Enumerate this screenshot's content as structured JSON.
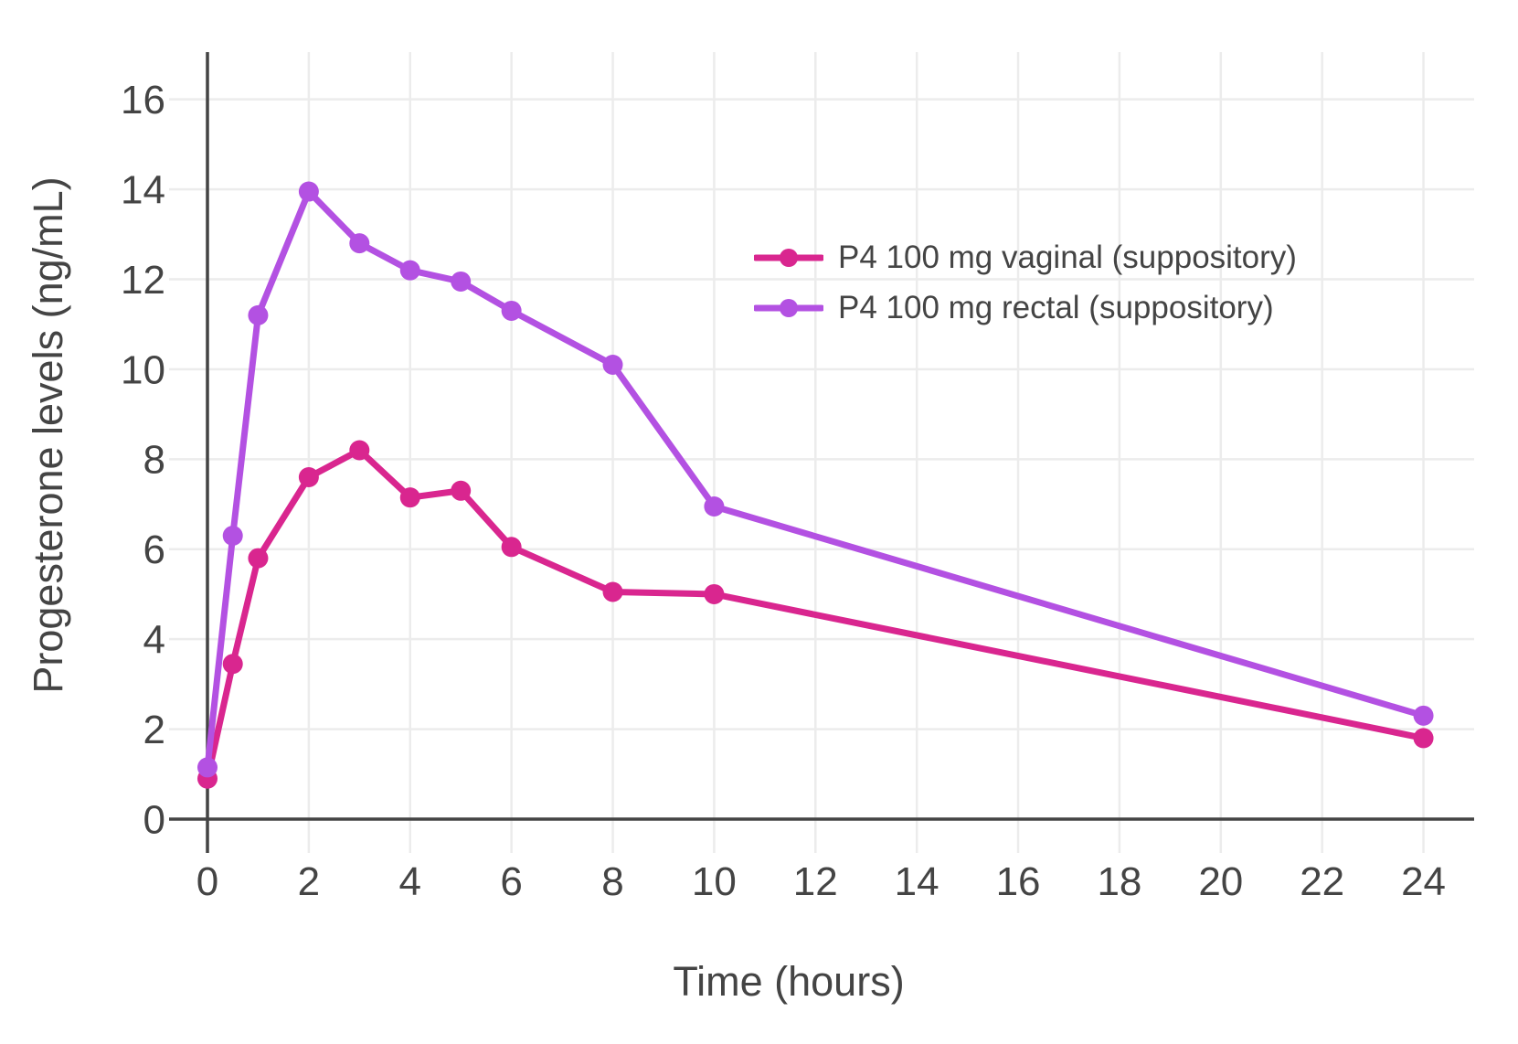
{
  "chart_data": {
    "type": "line",
    "title": "",
    "xlabel": "Time (hours)",
    "ylabel": "Progesterone levels (ng/mL)",
    "x": [
      0,
      0.5,
      1,
      2,
      3,
      4,
      5,
      6,
      8,
      10,
      24
    ],
    "series": [
      {
        "name": "P4 100 mg vaginal (suppository)",
        "color": "#D9268F",
        "values": [
          0.9,
          3.45,
          5.8,
          7.6,
          8.2,
          7.15,
          7.3,
          6.05,
          5.05,
          5.0,
          1.8
        ]
      },
      {
        "name": "P4 100 mg rectal (suppository)",
        "color": "#B351E2",
        "values": [
          1.15,
          6.3,
          11.2,
          13.95,
          12.8,
          12.2,
          11.95,
          11.3,
          10.1,
          6.95,
          2.3
        ]
      }
    ],
    "xticks": [
      0,
      2,
      4,
      6,
      8,
      10,
      12,
      14,
      16,
      18,
      20,
      22,
      24
    ],
    "yticks": [
      0,
      2,
      4,
      6,
      8,
      10,
      12,
      14,
      16
    ],
    "xlim": [
      0,
      25
    ],
    "ylim": [
      0,
      17.05
    ],
    "grid": true,
    "legend_position": "inside-top-right",
    "grid_color": "#ECECEC",
    "axis_color": "#444444",
    "text_color": "#444444",
    "background_color": "#FFFFFF",
    "marker_style": "circle",
    "line_width": 7,
    "marker_radius": 11
  }
}
